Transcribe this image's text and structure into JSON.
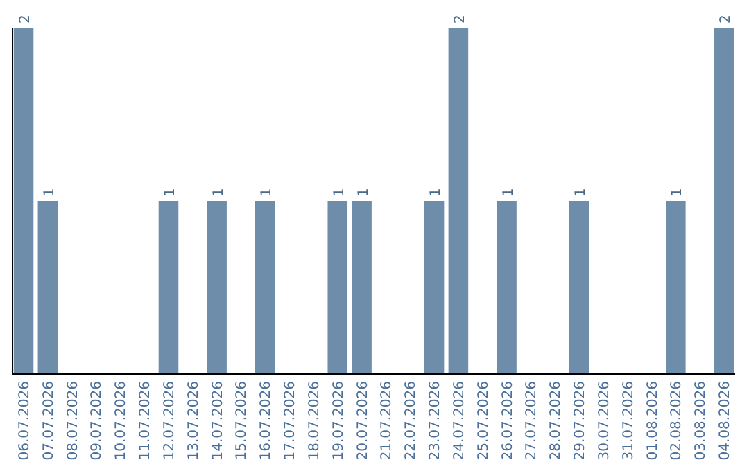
{
  "chart_data": {
    "type": "bar",
    "categories": [
      "06.07.2026",
      "07.07.2026",
      "08.07.2026",
      "09.07.2026",
      "10.07.2026",
      "11.07.2026",
      "12.07.2026",
      "13.07.2026",
      "14.07.2026",
      "15.07.2026",
      "16.07.2026",
      "17.07.2026",
      "18.07.2026",
      "19.07.2026",
      "20.07.2026",
      "21.07.2026",
      "22.07.2026",
      "23.07.2026",
      "24.07.2026",
      "25.07.2026",
      "26.07.2026",
      "27.07.2026",
      "28.07.2026",
      "29.07.2026",
      "30.07.2026",
      "31.07.2026",
      "01.08.2026",
      "02.08.2026",
      "03.08.2026",
      "04.08.2026"
    ],
    "values": [
      2,
      1,
      0,
      0,
      0,
      0,
      1,
      0,
      1,
      0,
      1,
      0,
      0,
      1,
      1,
      0,
      0,
      1,
      2,
      0,
      1,
      0,
      0,
      1,
      0,
      0,
      0,
      1,
      0,
      2
    ],
    "value_labels": [
      "2",
      "1",
      null,
      null,
      null,
      null,
      "1",
      null,
      "1",
      null,
      "1",
      null,
      null,
      "1",
      "1",
      null,
      null,
      "1",
      "2",
      null,
      "1",
      null,
      null,
      "1",
      null,
      null,
      null,
      "1",
      null,
      "2"
    ],
    "color": "#6d8dab",
    "ylim": [
      0,
      2
    ],
    "tick_labels": "x",
    "grid": false
  }
}
